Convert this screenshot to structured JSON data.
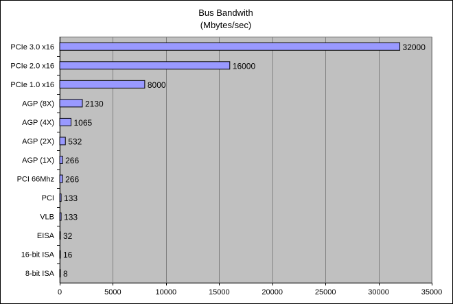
{
  "chart_data": {
    "type": "bar",
    "orientation": "horizontal",
    "title": "Bus Bandwith",
    "subtitle": "(Mbytes/sec)",
    "categories": [
      "PCIe 3.0 x16",
      "PCIe 2.0 x16",
      "PCIe 1.0 x16",
      "AGP (8X)",
      "AGP (4X)",
      "AGP (2X)",
      "AGP (1X)",
      "PCI 66Mhz",
      "PCI",
      "VLB",
      "EISA",
      "16-bit ISA",
      "8-bit ISA"
    ],
    "values": [
      32000,
      16000,
      8000,
      2130,
      1065,
      532,
      266,
      266,
      133,
      133,
      32,
      16,
      8
    ],
    "data_labels": [
      "32000",
      "16000",
      "8000",
      "2130",
      "1065",
      "532",
      "266",
      "266",
      "133",
      "133",
      "32",
      "16",
      "8"
    ],
    "xlim": [
      0,
      35000
    ],
    "x_ticks": [
      0,
      5000,
      10000,
      15000,
      20000,
      25000,
      30000,
      35000
    ],
    "x_tick_labels": [
      "0",
      "5000",
      "10000",
      "15000",
      "20000",
      "25000",
      "30000",
      "35000"
    ],
    "grid": true,
    "legend": "none",
    "colors": {
      "plot_background": "#c0c0c0",
      "bar_fill": "#9999ff",
      "bar_stroke": "#000000",
      "gridline": "#808080"
    }
  }
}
